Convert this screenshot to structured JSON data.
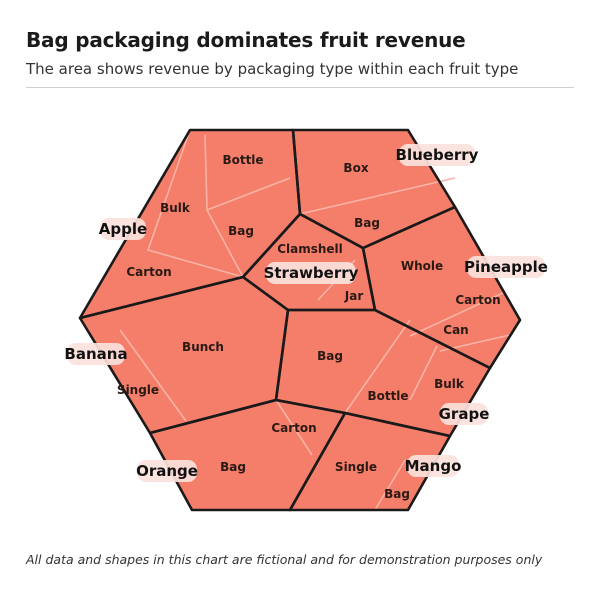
{
  "title": "Bag packaging dominates fruit revenue",
  "subtitle": "The area shows revenue by packaging type within each fruit type",
  "footnote": "All data and shapes in this chart are fictional and for demonstration purposes only",
  "colors": {
    "cell_fill": "#f47e6a",
    "cell_border": "#f8b3a6",
    "group_border": "#1a1a1a",
    "label_pill": "#fbe1dc"
  },
  "chart_data": {
    "type": "voronoi-treemap",
    "title": "Bag packaging dominates fruit revenue",
    "subtitle": "The area shows revenue by packaging type within each fruit type",
    "groups": [
      {
        "name": "Apple",
        "children": [
          "Bottle",
          "Bulk",
          "Bag",
          "Carton"
        ]
      },
      {
        "name": "Blueberry",
        "children": [
          "Box",
          "Bag"
        ]
      },
      {
        "name": "Strawberry",
        "children": [
          "Clamshell",
          "Jar"
        ]
      },
      {
        "name": "Pineapple",
        "children": [
          "Whole",
          "Carton",
          "Can"
        ]
      },
      {
        "name": "Banana",
        "children": [
          "Bunch",
          "Single"
        ]
      },
      {
        "name": "Grape",
        "children": [
          "Bag",
          "Bottle",
          "Bulk"
        ]
      },
      {
        "name": "Orange",
        "children": [
          "Carton",
          "Bag"
        ]
      },
      {
        "name": "Mango",
        "children": [
          "Single",
          "Bag"
        ]
      }
    ]
  }
}
